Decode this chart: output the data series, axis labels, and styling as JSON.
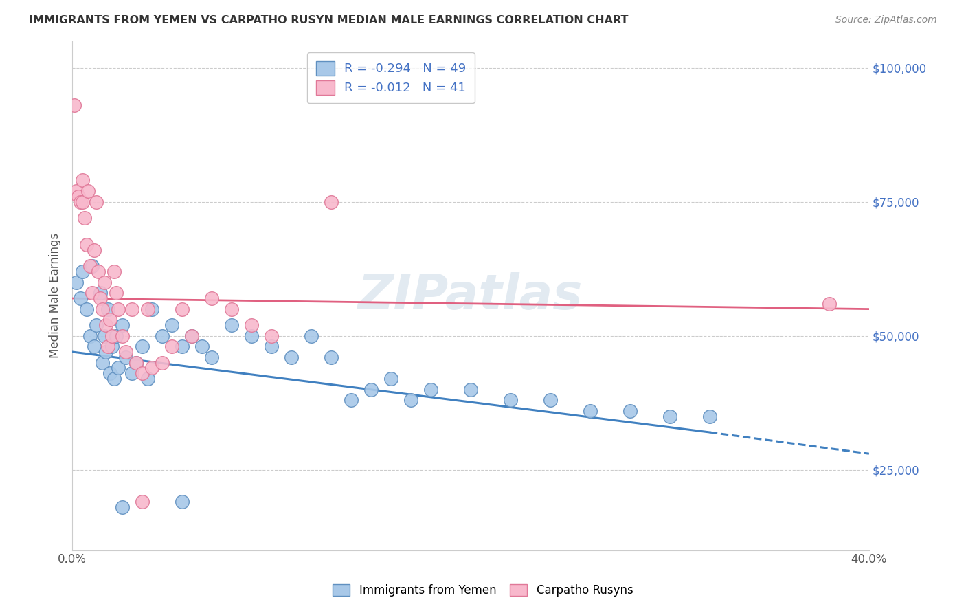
{
  "title": "IMMIGRANTS FROM YEMEN VS CARPATHO RUSYN MEDIAN MALE EARNINGS CORRELATION CHART",
  "source": "Source: ZipAtlas.com",
  "xlabel": "",
  "ylabel": "Median Male Earnings",
  "xlim": [
    0.0,
    0.4
  ],
  "ylim": [
    10000,
    105000
  ],
  "yticks": [
    25000,
    50000,
    75000,
    100000
  ],
  "ytick_labels": [
    "$25,000",
    "$50,000",
    "$75,000",
    "$100,000"
  ],
  "xticks": [
    0.0,
    0.05,
    0.1,
    0.15,
    0.2,
    0.25,
    0.3,
    0.35,
    0.4
  ],
  "xtick_labels": [
    "0.0%",
    "",
    "",
    "",
    "",
    "",
    "",
    "",
    "40.0%"
  ],
  "blue_color": "#a8c8e8",
  "pink_color": "#f8b8cc",
  "blue_edge": "#6090c0",
  "pink_edge": "#e07898",
  "trend_blue": "#4080c0",
  "trend_pink": "#e06080",
  "r_blue": -0.294,
  "n_blue": 49,
  "r_pink": -0.012,
  "n_pink": 41,
  "blue_x": [
    0.002,
    0.004,
    0.005,
    0.007,
    0.009,
    0.01,
    0.011,
    0.012,
    0.014,
    0.015,
    0.016,
    0.017,
    0.018,
    0.019,
    0.02,
    0.021,
    0.022,
    0.023,
    0.025,
    0.027,
    0.03,
    0.032,
    0.035,
    0.038,
    0.04,
    0.045,
    0.05,
    0.055,
    0.06,
    0.065,
    0.07,
    0.08,
    0.09,
    0.1,
    0.11,
    0.12,
    0.13,
    0.14,
    0.15,
    0.16,
    0.17,
    0.18,
    0.2,
    0.22,
    0.24,
    0.26,
    0.28,
    0.3,
    0.32
  ],
  "blue_y": [
    60000,
    57000,
    62000,
    55000,
    50000,
    63000,
    48000,
    52000,
    58000,
    45000,
    50000,
    47000,
    55000,
    43000,
    48000,
    42000,
    50000,
    44000,
    52000,
    46000,
    43000,
    45000,
    48000,
    42000,
    55000,
    50000,
    52000,
    48000,
    50000,
    48000,
    46000,
    52000,
    50000,
    48000,
    46000,
    50000,
    46000,
    38000,
    40000,
    42000,
    38000,
    40000,
    40000,
    38000,
    38000,
    36000,
    36000,
    35000,
    35000
  ],
  "pink_x": [
    0.001,
    0.002,
    0.003,
    0.004,
    0.005,
    0.005,
    0.006,
    0.007,
    0.008,
    0.009,
    0.01,
    0.011,
    0.012,
    0.013,
    0.014,
    0.015,
    0.016,
    0.017,
    0.018,
    0.019,
    0.02,
    0.021,
    0.022,
    0.023,
    0.025,
    0.027,
    0.03,
    0.032,
    0.035,
    0.038,
    0.04,
    0.045,
    0.05,
    0.055,
    0.06,
    0.07,
    0.08,
    0.09,
    0.1,
    0.13,
    0.38
  ],
  "pink_y": [
    93000,
    77000,
    76000,
    75000,
    79000,
    75000,
    72000,
    67000,
    77000,
    63000,
    58000,
    66000,
    75000,
    62000,
    57000,
    55000,
    60000,
    52000,
    48000,
    53000,
    50000,
    62000,
    58000,
    55000,
    50000,
    47000,
    55000,
    45000,
    43000,
    55000,
    44000,
    45000,
    48000,
    55000,
    50000,
    57000,
    55000,
    52000,
    50000,
    75000,
    56000
  ],
  "blue_lowx": [
    0.025,
    0.055
  ],
  "blue_lowy": [
    18000,
    19000
  ],
  "pink_lowx": [
    0.035
  ],
  "pink_lowy": [
    19000
  ],
  "watermark": "ZIPatlas",
  "background_color": "#ffffff",
  "grid_color": "#cccccc",
  "trend_blue_x0": 0.0,
  "trend_blue_y0": 47000,
  "trend_blue_x1": 0.32,
  "trend_blue_y1": 32000,
  "trend_blue_dash_x0": 0.32,
  "trend_blue_dash_y0": 32000,
  "trend_blue_dash_x1": 0.4,
  "trend_blue_dash_y1": 28000,
  "trend_pink_x0": 0.0,
  "trend_pink_y0": 57000,
  "trend_pink_x1": 0.4,
  "trend_pink_y1": 55000
}
